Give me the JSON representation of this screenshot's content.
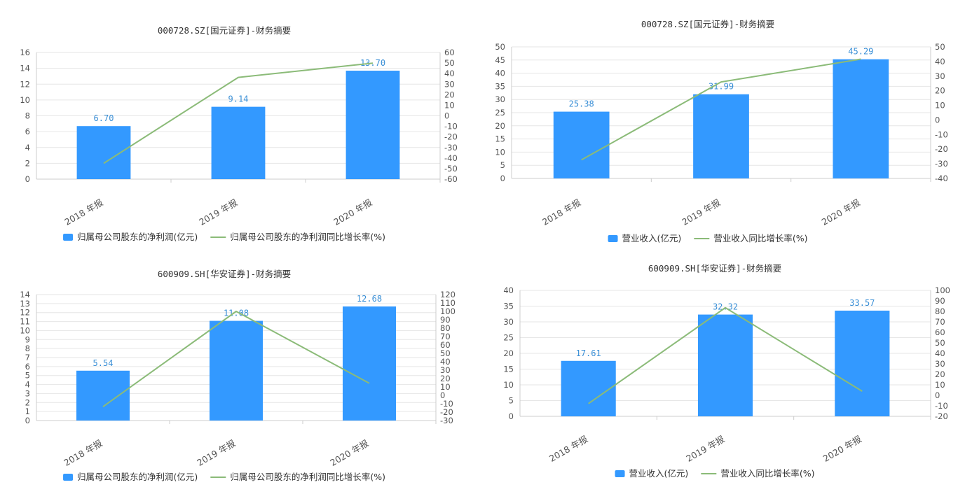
{
  "colors": {
    "bar": "#3399ff",
    "line": "#8bbb78",
    "grid": "#e6e6e6",
    "axis": "#cccccc",
    "label": "#3a8fd6"
  },
  "chart_data": [
    {
      "type": "bar+line",
      "title": "000728.SZ[国元证券]-财务摘要",
      "categories": [
        "2018 年报",
        "2019 年报",
        "2020 年报"
      ],
      "series": [
        {
          "name": "归属母公司股东的净利润(亿元)",
          "type": "bar",
          "axis": "left",
          "values": [
            6.7,
            9.14,
            13.7
          ],
          "labels": [
            "6.70",
            "9.14",
            "13.70"
          ]
        },
        {
          "name": "归属母公司股东的净利润同比增长率(%)",
          "type": "line",
          "axis": "right",
          "values": [
            -45.0,
            36.4,
            49.9
          ]
        }
      ],
      "y_left": {
        "min": 0,
        "max": 16,
        "step": 2
      },
      "y_right": {
        "min": -60,
        "max": 60,
        "step": 10
      },
      "legend": "bottom"
    },
    {
      "type": "bar+line",
      "title": "000728.SZ[国元证券]-财务摘要",
      "categories": [
        "2018 年报",
        "2019 年报",
        "2020 年报"
      ],
      "series": [
        {
          "name": "营业收入(亿元)",
          "type": "bar",
          "axis": "left",
          "values": [
            25.38,
            31.99,
            45.29
          ],
          "labels": [
            "25.38",
            "31.99",
            "45.29"
          ]
        },
        {
          "name": "营业收入同比增长率(%)",
          "type": "line",
          "axis": "right",
          "values": [
            -27.3,
            26.0,
            41.6
          ]
        }
      ],
      "y_left": {
        "min": 0,
        "max": 50,
        "step": 5
      },
      "y_right": {
        "min": -40,
        "max": 50,
        "step": 10
      },
      "legend": "bottom"
    },
    {
      "type": "bar+line",
      "title": "600909.SH[华安证券]-财务摘要",
      "categories": [
        "2018 年报",
        "2019 年报",
        "2020 年报"
      ],
      "series": [
        {
          "name": "归属母公司股东的净利润(亿元)",
          "type": "bar",
          "axis": "left",
          "values": [
            5.54,
            11.08,
            12.68
          ],
          "labels": [
            "5.54",
            "11.08",
            "12.68"
          ]
        },
        {
          "name": "归属母公司股东的净利润同比增长率(%)",
          "type": "line",
          "axis": "right",
          "values": [
            -13.5,
            100.0,
            14.4
          ]
        }
      ],
      "y_left": {
        "min": 0,
        "max": 14,
        "step": 1
      },
      "y_right": {
        "min": -30,
        "max": 120,
        "step": 10
      },
      "legend": "bottom"
    },
    {
      "type": "bar+line",
      "title": "600909.SH[华安证券]-财务摘要",
      "categories": [
        "2018 年报",
        "2019 年报",
        "2020 年报"
      ],
      "series": [
        {
          "name": "营业收入(亿元)",
          "type": "bar",
          "axis": "left",
          "values": [
            17.61,
            32.32,
            33.57
          ],
          "labels": [
            "17.61",
            "32.32",
            "33.57"
          ]
        },
        {
          "name": "营业收入同比增长率(%)",
          "type": "line",
          "axis": "right",
          "values": [
            -7.9,
            83.5,
            3.9
          ]
        }
      ],
      "y_left": {
        "min": 0,
        "max": 40,
        "step": 5
      },
      "y_right": {
        "min": -20,
        "max": 100,
        "step": 10
      },
      "legend": "bottom"
    }
  ]
}
